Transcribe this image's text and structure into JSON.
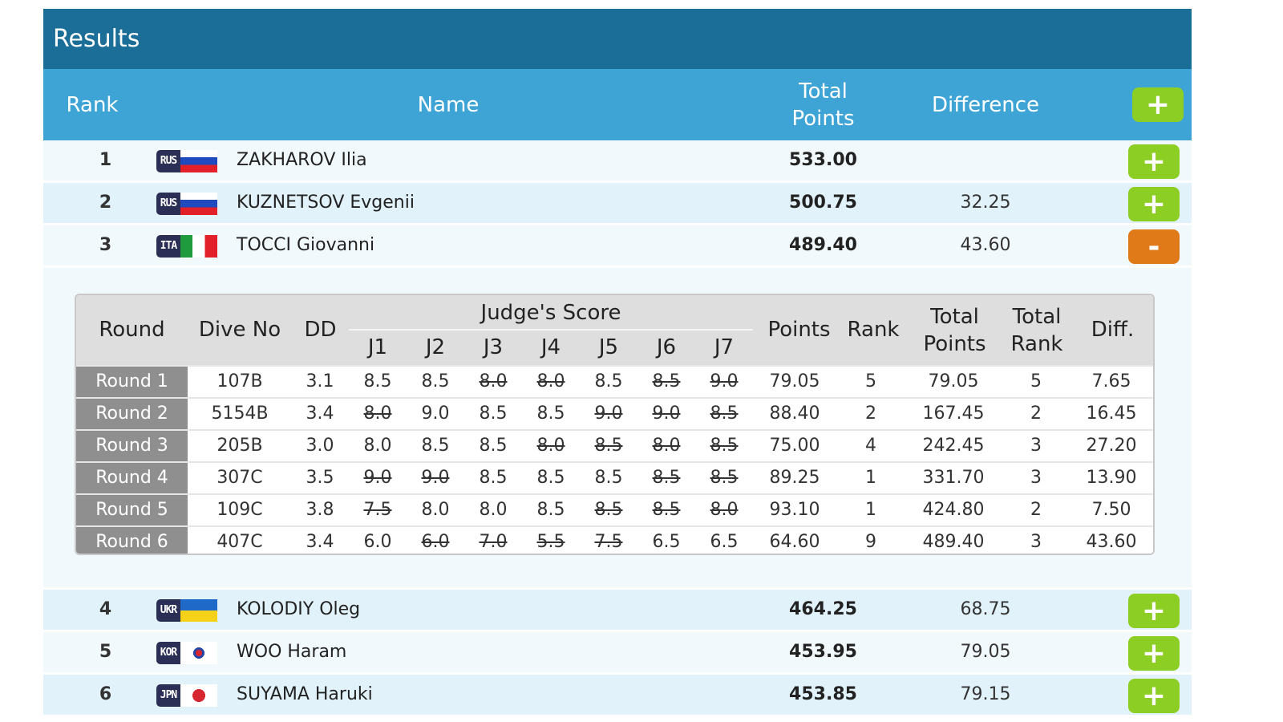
{
  "title": "Results",
  "headers": {
    "rank": "Rank",
    "name": "Name",
    "total_points": "Total Points",
    "difference": "Difference",
    "expand_all": "+"
  },
  "colors": {
    "title_bar": "#1b6e97",
    "header_bar": "#3ea4d6",
    "expand_button": "#8dce25",
    "collapse_button": "#e07a18",
    "round_label_bg": "#8f8f8f"
  },
  "athletes": [
    {
      "rank": "1",
      "country": "RUS",
      "flag_icon": "russia-flag-icon",
      "name": "ZAKHAROV Ilia",
      "total": "533.00",
      "difference": "",
      "toggle": "+",
      "expanded": false
    },
    {
      "rank": "2",
      "country": "RUS",
      "flag_icon": "russia-flag-icon",
      "name": "KUZNETSOV Evgenii",
      "total": "500.75",
      "difference": "32.25",
      "toggle": "+",
      "expanded": false
    },
    {
      "rank": "3",
      "country": "ITA",
      "flag_icon": "italy-flag-icon",
      "name": "TOCCI Giovanni",
      "total": "489.40",
      "difference": "43.60",
      "toggle": "-",
      "expanded": true
    },
    {
      "rank": "4",
      "country": "UKR",
      "flag_icon": "ukraine-flag-icon",
      "name": "KOLODIY Oleg",
      "total": "464.25",
      "difference": "68.75",
      "toggle": "+",
      "expanded": false
    },
    {
      "rank": "5",
      "country": "KOR",
      "flag_icon": "korea-flag-icon",
      "name": "WOO Haram",
      "total": "453.95",
      "difference": "79.05",
      "toggle": "+",
      "expanded": false
    },
    {
      "rank": "6",
      "country": "JPN",
      "flag_icon": "japan-flag-icon",
      "name": "SUYAMA Haruki",
      "total": "453.85",
      "difference": "79.15",
      "toggle": "+",
      "expanded": false
    }
  ],
  "detail": {
    "headers": {
      "round": "Round",
      "dive_no": "Dive No",
      "dd": "DD",
      "judges_score": "Judge's Score",
      "judges": [
        "J1",
        "J2",
        "J3",
        "J4",
        "J5",
        "J6",
        "J7"
      ],
      "points": "Points",
      "rank": "Rank",
      "total_points": "Total Points",
      "total_rank": "Total Rank",
      "diff": "Diff."
    },
    "rounds": [
      {
        "round": "Round 1",
        "dive_no": "107B",
        "dd": "3.1",
        "scores": [
          "8.5",
          "8.5",
          "8.0",
          "8.0",
          "8.5",
          "8.5",
          "9.0"
        ],
        "struck": [
          false,
          false,
          true,
          true,
          false,
          true,
          true
        ],
        "points": "79.05",
        "rank": "5",
        "total_points": "79.05",
        "total_rank": "5",
        "diff": "7.65"
      },
      {
        "round": "Round 2",
        "dive_no": "5154B",
        "dd": "3.4",
        "scores": [
          "8.0",
          "9.0",
          "8.5",
          "8.5",
          "9.0",
          "9.0",
          "8.5"
        ],
        "struck": [
          true,
          false,
          false,
          false,
          true,
          true,
          true
        ],
        "points": "88.40",
        "rank": "2",
        "total_points": "167.45",
        "total_rank": "2",
        "diff": "16.45"
      },
      {
        "round": "Round 3",
        "dive_no": "205B",
        "dd": "3.0",
        "scores": [
          "8.0",
          "8.5",
          "8.5",
          "8.0",
          "8.5",
          "8.0",
          "8.5"
        ],
        "struck": [
          false,
          false,
          false,
          true,
          true,
          true,
          true
        ],
        "points": "75.00",
        "rank": "4",
        "total_points": "242.45",
        "total_rank": "3",
        "diff": "27.20"
      },
      {
        "round": "Round 4",
        "dive_no": "307C",
        "dd": "3.5",
        "scores": [
          "9.0",
          "9.0",
          "8.5",
          "8.5",
          "8.5",
          "8.5",
          "8.5"
        ],
        "struck": [
          true,
          true,
          false,
          false,
          false,
          true,
          true
        ],
        "points": "89.25",
        "rank": "1",
        "total_points": "331.70",
        "total_rank": "3",
        "diff": "13.90"
      },
      {
        "round": "Round 5",
        "dive_no": "109C",
        "dd": "3.8",
        "scores": [
          "7.5",
          "8.0",
          "8.0",
          "8.5",
          "8.5",
          "8.5",
          "8.0"
        ],
        "struck": [
          true,
          false,
          false,
          false,
          true,
          true,
          true
        ],
        "points": "93.10",
        "rank": "1",
        "total_points": "424.80",
        "total_rank": "2",
        "diff": "7.50"
      },
      {
        "round": "Round 6",
        "dive_no": "407C",
        "dd": "3.4",
        "scores": [
          "6.0",
          "6.0",
          "7.0",
          "5.5",
          "7.5",
          "6.5",
          "6.5"
        ],
        "struck": [
          false,
          true,
          true,
          true,
          true,
          false,
          false
        ],
        "points": "64.60",
        "rank": "9",
        "total_points": "489.40",
        "total_rank": "3",
        "diff": "43.60"
      }
    ]
  }
}
